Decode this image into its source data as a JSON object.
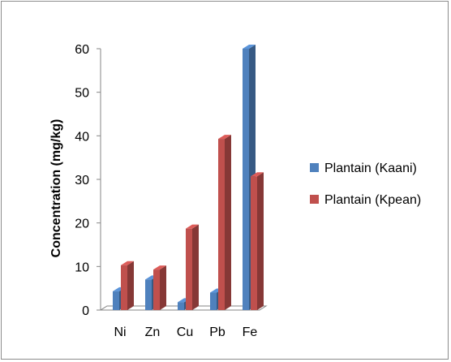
{
  "chart_data": {
    "type": "bar",
    "style": "3d-clustered-column",
    "categories": [
      "Ni",
      "Zn",
      "Cu",
      "Pb",
      "Fe"
    ],
    "series": [
      {
        "name": "Plantain (Kaani)",
        "color": "#4F81BD",
        "values": [
          4.3,
          7.0,
          1.8,
          4.0,
          60.0
        ]
      },
      {
        "name": "Plantain (Kpean)",
        "color": "#C0504D",
        "values": [
          10.3,
          9.3,
          18.7,
          39.3,
          30.7
        ]
      }
    ],
    "ylabel": "Concentration (mg/kg)",
    "xlabel": "",
    "title": "",
    "ylim": [
      0,
      60
    ],
    "yticks": [
      0,
      10,
      20,
      30,
      40,
      50,
      60
    ],
    "grid": false,
    "legend_position": "right"
  }
}
